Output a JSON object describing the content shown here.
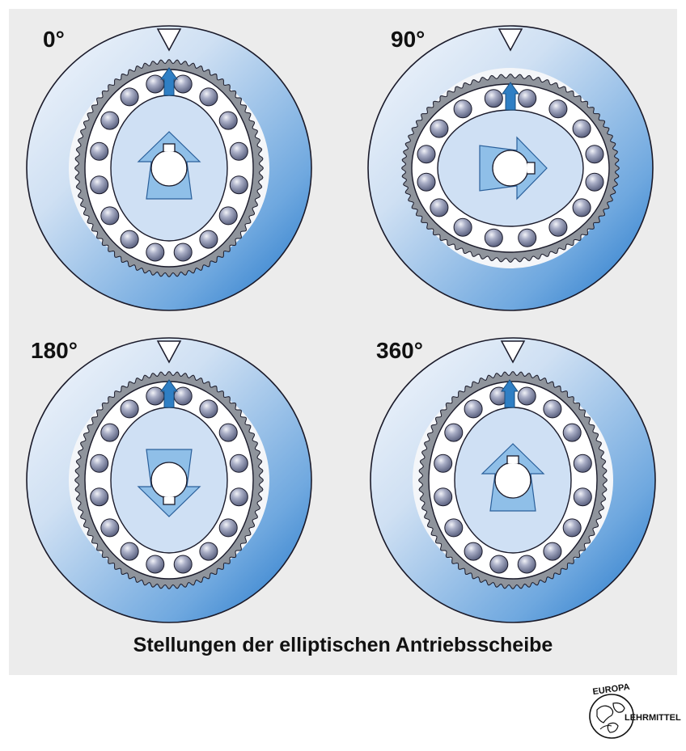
{
  "caption": "Stellungen der elliptischen Antriebsscheibe",
  "panels": [
    {
      "angle": "0°",
      "label_id": "0",
      "rotation_deg": 0,
      "arrow": "up"
    },
    {
      "angle": "90°",
      "label_id": "90",
      "rotation_deg": 90,
      "arrow": "right"
    },
    {
      "angle": "180°",
      "label_id": "180",
      "rotation_deg": 180,
      "arrow": "down"
    },
    {
      "angle": "360°",
      "label_id": "360",
      "rotation_deg": 360,
      "arrow": "up"
    }
  ],
  "logo": {
    "top_text": "EUROPA",
    "side_text": "LEHRMITTEL"
  },
  "colors": {
    "background_panel": "#ececec",
    "disc_light": "#e6eef9",
    "disc_dark": "#2e7fd0",
    "gear_ring": "#8f949c",
    "bearing_ring": "#ffffff",
    "ball": "#6f7694",
    "ellipse_fill": "#cfe0f4",
    "arrow_fill": "#8fbfe8",
    "marker_arrow": "#2f7fc4",
    "outline": "#1a1a2a"
  }
}
